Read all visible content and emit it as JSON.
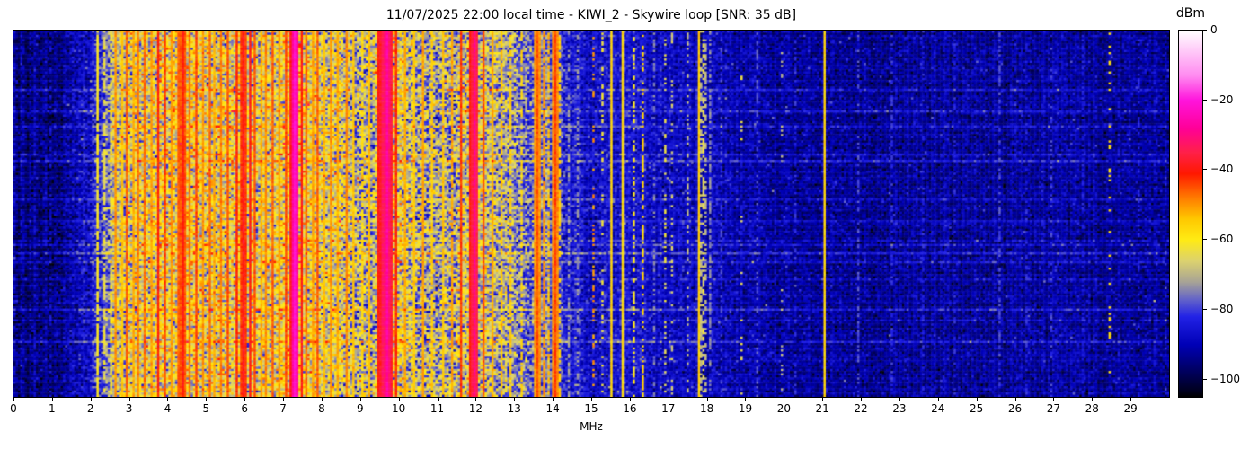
{
  "figure": {
    "background": "#ffffff"
  },
  "chart_data": {
    "type": "heatmap",
    "subtype": "radio-spectrogram-waterfall",
    "title": "11/07/2025 22:00 local time - KIWI_2 - Skywire loop [SNR: 35 dB]",
    "xlabel": "MHz",
    "xlim": [
      0,
      30
    ],
    "x_ticks": [
      0,
      1,
      2,
      3,
      4,
      5,
      6,
      7,
      8,
      9,
      10,
      11,
      12,
      13,
      14,
      15,
      16,
      17,
      18,
      19,
      20,
      21,
      22,
      23,
      24,
      25,
      26,
      27,
      28,
      29
    ],
    "grid": false,
    "legend": "none",
    "freq_bins": 515,
    "time_rows": 170,
    "colorbar": {
      "label": "dBm",
      "position": "right",
      "range": [
        0,
        -105
      ],
      "ticks": [
        {
          "v": 0,
          "label": "0"
        },
        {
          "v": -20,
          "label": "−20"
        },
        {
          "v": -40,
          "label": "−40"
        },
        {
          "v": -60,
          "label": "−60"
        },
        {
          "v": -80,
          "label": "−80"
        },
        {
          "v": -100,
          "label": "−100"
        }
      ]
    },
    "colormap": {
      "name": "kiwisdr-waterfall",
      "stops": [
        [
          0,
          "#ffffff"
        ],
        [
          -6,
          "#ffc8f8"
        ],
        [
          -13,
          "#ff8af0"
        ],
        [
          -20,
          "#ff14dc"
        ],
        [
          -28,
          "#ff0098"
        ],
        [
          -35,
          "#ff2048"
        ],
        [
          -41,
          "#ff1800"
        ],
        [
          -48,
          "#ff7c00"
        ],
        [
          -54,
          "#ffc800"
        ],
        [
          -60,
          "#ffeb14"
        ],
        [
          -66,
          "#dcd26e"
        ],
        [
          -72,
          "#a8a495"
        ],
        [
          -77,
          "#6464c8"
        ],
        [
          -82,
          "#2222e6"
        ],
        [
          -90,
          "#0000b6"
        ],
        [
          -97,
          "#000066"
        ],
        [
          -103,
          "#000022"
        ],
        [
          -105,
          "#000000"
        ]
      ]
    },
    "noise_floor_profile_dbm": [
      [
        0,
        -94
      ],
      [
        1.2,
        -94
      ],
      [
        1.7,
        -90
      ],
      [
        2.0,
        -86
      ],
      [
        2.3,
        -80
      ],
      [
        2.6,
        -70
      ],
      [
        3.0,
        -65
      ],
      [
        3.5,
        -64
      ],
      [
        4.0,
        -63
      ],
      [
        4.6,
        -62
      ],
      [
        5.2,
        -64
      ],
      [
        5.7,
        -63
      ],
      [
        6.1,
        -64
      ],
      [
        6.6,
        -66
      ],
      [
        7.0,
        -62
      ],
      [
        7.45,
        -60
      ],
      [
        7.9,
        -65
      ],
      [
        8.5,
        -66
      ],
      [
        9.0,
        -71
      ],
      [
        9.3,
        -69
      ],
      [
        9.6,
        -60
      ],
      [
        9.95,
        -63
      ],
      [
        10.4,
        -69
      ],
      [
        10.9,
        -71
      ],
      [
        11.4,
        -71
      ],
      [
        11.8,
        -66
      ],
      [
        12.1,
        -65
      ],
      [
        12.5,
        -69
      ],
      [
        13.0,
        -72
      ],
      [
        13.35,
        -77
      ],
      [
        13.7,
        -75
      ],
      [
        14.05,
        -77
      ],
      [
        14.4,
        -84
      ],
      [
        15.0,
        -86
      ],
      [
        15.6,
        -85
      ],
      [
        16.2,
        -86
      ],
      [
        17.0,
        -88
      ],
      [
        18.0,
        -88
      ],
      [
        18.7,
        -90
      ],
      [
        19.5,
        -91
      ],
      [
        21,
        -92
      ],
      [
        24,
        -92
      ],
      [
        27,
        -92
      ],
      [
        30,
        -92
      ]
    ],
    "noise_sigma_profile_db": [
      [
        0,
        4
      ],
      [
        1.6,
        4.5
      ],
      [
        2.2,
        6
      ],
      [
        2.6,
        9
      ],
      [
        3.0,
        10.5
      ],
      [
        5,
        11
      ],
      [
        7,
        10
      ],
      [
        9,
        11
      ],
      [
        11,
        11
      ],
      [
        12.5,
        10
      ],
      [
        13.3,
        8
      ],
      [
        14,
        6.5
      ],
      [
        14.6,
        5
      ],
      [
        16,
        4.5
      ],
      [
        18,
        4
      ],
      [
        20,
        3.8
      ],
      [
        30,
        3.8
      ]
    ],
    "carriers": [
      {
        "f": 0.55,
        "dbm": -87,
        "w": 1,
        "duty": 0.3
      },
      {
        "f": 0.95,
        "dbm": -86,
        "w": 1,
        "duty": 0.25
      },
      {
        "f": 1.45,
        "dbm": -86,
        "w": 1,
        "duty": 0.2
      },
      {
        "f": 2.15,
        "dbm": -60,
        "w": 1,
        "duty": 0.9
      },
      {
        "f": 2.32,
        "dbm": -63,
        "w": 1,
        "duty": 0.6
      },
      {
        "f": 2.5,
        "dbm": -62,
        "w": 1,
        "duty": 0.5
      },
      {
        "f": 2.62,
        "dbm": -50,
        "w": 1,
        "duty": 1
      },
      {
        "f": 2.78,
        "dbm": -54,
        "w": 1,
        "duty": 1
      },
      {
        "f": 2.92,
        "dbm": -46,
        "w": 1,
        "duty": 1
      },
      {
        "f": 3.08,
        "dbm": -52,
        "w": 1,
        "duty": 1
      },
      {
        "f": 3.22,
        "dbm": -48,
        "w": 1,
        "duty": 1
      },
      {
        "f": 3.4,
        "dbm": -47,
        "w": 1,
        "duty": 1
      },
      {
        "f": 3.55,
        "dbm": -51,
        "w": 1,
        "duty": 1
      },
      {
        "f": 3.73,
        "dbm": -41,
        "w": 1,
        "duty": 1
      },
      {
        "f": 3.92,
        "dbm": -44,
        "w": 1,
        "duty": 1
      },
      {
        "f": 4.1,
        "dbm": -50,
        "w": 1,
        "duty": 1
      },
      {
        "f": 4.25,
        "dbm": -46,
        "w": 1,
        "duty": 1
      },
      {
        "f": 4.39,
        "dbm": -40,
        "w": 2,
        "duty": 1
      },
      {
        "f": 4.55,
        "dbm": -48,
        "w": 1,
        "duty": 1
      },
      {
        "f": 4.72,
        "dbm": -44,
        "w": 1,
        "duty": 1
      },
      {
        "f": 4.9,
        "dbm": -50,
        "w": 1,
        "duty": 1
      },
      {
        "f": 5.05,
        "dbm": -47,
        "w": 1,
        "duty": 1
      },
      {
        "f": 5.2,
        "dbm": -52,
        "w": 1,
        "duty": 1
      },
      {
        "f": 5.35,
        "dbm": -48,
        "w": 1,
        "duty": 1
      },
      {
        "f": 5.55,
        "dbm": -45,
        "w": 1,
        "duty": 1
      },
      {
        "f": 5.75,
        "dbm": -42,
        "w": 1,
        "duty": 1
      },
      {
        "f": 5.95,
        "dbm": -38,
        "w": 2,
        "duty": 1
      },
      {
        "f": 6.12,
        "dbm": -40,
        "w": 1,
        "duty": 1
      },
      {
        "f": 6.25,
        "dbm": -45,
        "w": 1,
        "duty": 1
      },
      {
        "f": 6.4,
        "dbm": -52,
        "w": 1,
        "duty": 1
      },
      {
        "f": 6.55,
        "dbm": -49,
        "w": 1,
        "duty": 1
      },
      {
        "f": 6.7,
        "dbm": -46,
        "w": 1,
        "duty": 1
      },
      {
        "f": 6.88,
        "dbm": -51,
        "w": 1,
        "duty": 1
      },
      {
        "f": 7.05,
        "dbm": -44,
        "w": 1,
        "duty": 1
      },
      {
        "f": 7.18,
        "dbm": -39,
        "w": 1,
        "duty": 1
      },
      {
        "f": 7.3,
        "dbm": -22,
        "w": 3,
        "duty": 1
      },
      {
        "f": 7.44,
        "dbm": -40,
        "w": 1,
        "duty": 1
      },
      {
        "f": 7.58,
        "dbm": -47,
        "w": 1,
        "duty": 1
      },
      {
        "f": 7.72,
        "dbm": -51,
        "w": 1,
        "duty": 1
      },
      {
        "f": 7.87,
        "dbm": -46,
        "w": 1,
        "duty": 1
      },
      {
        "f": 8.02,
        "dbm": -53,
        "w": 1,
        "duty": 1
      },
      {
        "f": 8.2,
        "dbm": -50,
        "w": 1,
        "duty": 1
      },
      {
        "f": 8.4,
        "dbm": -52,
        "w": 1,
        "duty": 1
      },
      {
        "f": 8.6,
        "dbm": -49,
        "w": 1,
        "duty": 1
      },
      {
        "f": 8.8,
        "dbm": -54,
        "w": 1,
        "duty": 1
      },
      {
        "f": 9.0,
        "dbm": -57,
        "w": 1,
        "duty": 0.8
      },
      {
        "f": 9.22,
        "dbm": -53,
        "w": 1,
        "duty": 1
      },
      {
        "f": 9.42,
        "dbm": -40,
        "w": 1,
        "duty": 1
      },
      {
        "f": 9.55,
        "dbm": -33,
        "w": 2,
        "duty": 1
      },
      {
        "f": 9.65,
        "dbm": -27,
        "w": 2,
        "duty": 1
      },
      {
        "f": 9.78,
        "dbm": -37,
        "w": 1,
        "duty": 1
      },
      {
        "f": 9.92,
        "dbm": -42,
        "w": 1,
        "duty": 1
      },
      {
        "f": 10.12,
        "dbm": -52,
        "w": 1,
        "duty": 1
      },
      {
        "f": 10.35,
        "dbm": -55,
        "w": 1,
        "duty": 1
      },
      {
        "f": 10.6,
        "dbm": -51,
        "w": 1,
        "duty": 1
      },
      {
        "f": 10.85,
        "dbm": -55,
        "w": 1,
        "duty": 0.9
      },
      {
        "f": 11.1,
        "dbm": -54,
        "w": 1,
        "duty": 0.9
      },
      {
        "f": 11.35,
        "dbm": -51,
        "w": 1,
        "duty": 0.9
      },
      {
        "f": 11.62,
        "dbm": -43,
        "w": 1,
        "duty": 1
      },
      {
        "f": 11.8,
        "dbm": -40,
        "w": 1,
        "duty": 1
      },
      {
        "f": 11.97,
        "dbm": -30,
        "w": 2,
        "duty": 1
      },
      {
        "f": 12.15,
        "dbm": -45,
        "w": 1,
        "duty": 1
      },
      {
        "f": 12.4,
        "dbm": -52,
        "w": 1,
        "duty": 1
      },
      {
        "f": 12.65,
        "dbm": -54,
        "w": 1,
        "duty": 0.8
      },
      {
        "f": 12.9,
        "dbm": -55,
        "w": 1,
        "duty": 0.7
      },
      {
        "f": 13.15,
        "dbm": -56,
        "w": 1,
        "duty": 0.6
      },
      {
        "f": 13.57,
        "dbm": -45,
        "w": 2,
        "duty": 1
      },
      {
        "f": 13.72,
        "dbm": -50,
        "w": 1,
        "duty": 0.85
      },
      {
        "f": 13.88,
        "dbm": -53,
        "w": 1,
        "duty": 0.6
      },
      {
        "f": 14.02,
        "dbm": -44,
        "w": 2,
        "duty": 1
      },
      {
        "f": 14.18,
        "dbm": -55,
        "w": 1,
        "duty": 0.5
      },
      {
        "f": 14.4,
        "dbm": -72,
        "w": 1,
        "duty": 0.4
      },
      {
        "f": 14.65,
        "dbm": -73,
        "w": 1,
        "duty": 0.35
      },
      {
        "f": 15.05,
        "dbm": -50,
        "w": 1,
        "duty": 0.3
      },
      {
        "f": 15.25,
        "dbm": -62,
        "w": 1,
        "duty": 0.3
      },
      {
        "f": 15.5,
        "dbm": -56,
        "w": 1,
        "duty": 1
      },
      {
        "f": 15.78,
        "dbm": -57,
        "w": 1,
        "duty": 1
      },
      {
        "f": 16.08,
        "dbm": -60,
        "w": 1,
        "duty": 0.45
      },
      {
        "f": 16.3,
        "dbm": -56,
        "w": 1,
        "duty": 0.55
      },
      {
        "f": 16.6,
        "dbm": -75,
        "w": 1,
        "duty": 0.3
      },
      {
        "f": 16.9,
        "dbm": -64,
        "w": 1,
        "duty": 0.3
      },
      {
        "f": 17.05,
        "dbm": -67,
        "w": 1,
        "duty": 0.3
      },
      {
        "f": 17.45,
        "dbm": -70,
        "w": 1,
        "duty": 0.4
      },
      {
        "f": 17.75,
        "dbm": -55,
        "w": 1,
        "duty": 1
      },
      {
        "f": 17.9,
        "dbm": -64,
        "w": 2,
        "duty": 0.5
      },
      {
        "f": 18.05,
        "dbm": -74,
        "w": 1,
        "duty": 0.6
      },
      {
        "f": 18.35,
        "dbm": -80,
        "w": 1,
        "duty": 0.4
      },
      {
        "f": 18.9,
        "dbm": -64,
        "w": 1,
        "duty": 0.1
      },
      {
        "f": 19.3,
        "dbm": -78,
        "w": 1,
        "duty": 0.35
      },
      {
        "f": 19.95,
        "dbm": -70,
        "w": 1,
        "duty": 0.1
      },
      {
        "f": 20.3,
        "dbm": -81,
        "w": 1,
        "duty": 0.3
      },
      {
        "f": 21.05,
        "dbm": -56,
        "w": 1,
        "duty": 1
      },
      {
        "f": 21.9,
        "dbm": -79,
        "w": 1,
        "duty": 0.45
      },
      {
        "f": 22.8,
        "dbm": -81,
        "w": 1,
        "duty": 0.35
      },
      {
        "f": 23.6,
        "dbm": -82,
        "w": 1,
        "duty": 0.3
      },
      {
        "f": 24.4,
        "dbm": -82,
        "w": 1,
        "duty": 0.3
      },
      {
        "f": 25.6,
        "dbm": -79,
        "w": 1,
        "duty": 0.45
      },
      {
        "f": 26.3,
        "dbm": -82,
        "w": 1,
        "duty": 0.3
      },
      {
        "f": 26.9,
        "dbm": -80,
        "w": 1,
        "duty": 0.35
      },
      {
        "f": 27.7,
        "dbm": -83,
        "w": 1,
        "duty": 0.3
      },
      {
        "f": 28.45,
        "dbm": -58,
        "w": 1,
        "duty": 0.16
      },
      {
        "f": 29.2,
        "dbm": -83,
        "w": 1,
        "duty": 0.3
      }
    ]
  }
}
